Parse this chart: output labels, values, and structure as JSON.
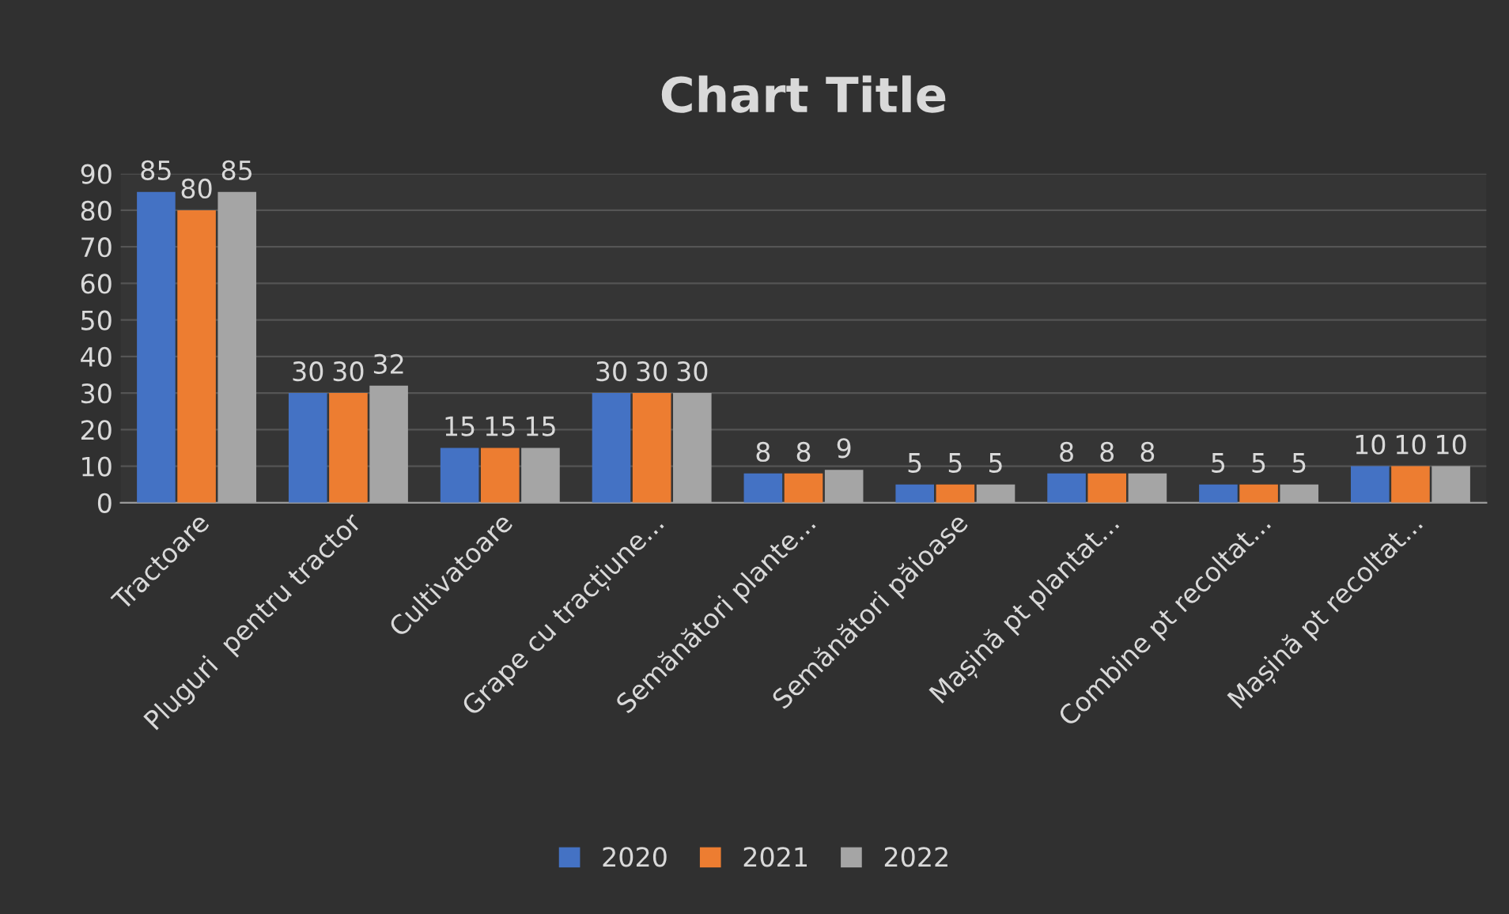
{
  "chart_data": {
    "type": "bar",
    "title": "Chart Title",
    "categories": [
      "Tractoare",
      "Pluguri  pentru tractor",
      "Cultivatoare",
      "Grape cu tracțiune...",
      "Semănători plante...",
      "Semănători păioase",
      "Mașină pt plantat...",
      "Combine pt recoltat...",
      "Mașină pt recoltat..."
    ],
    "series": [
      {
        "name": "2020",
        "color": "#4472c4",
        "values": [
          85,
          30,
          15,
          30,
          8,
          5,
          8,
          5,
          10
        ]
      },
      {
        "name": "2021",
        "color": "#ed7d31",
        "values": [
          80,
          30,
          15,
          30,
          8,
          5,
          8,
          5,
          10
        ]
      },
      {
        "name": "2022",
        "color": "#a5a5a5",
        "values": [
          85,
          32,
          15,
          30,
          9,
          5,
          8,
          5,
          10
        ]
      }
    ],
    "ylim": [
      0,
      90
    ],
    "yticks": [
      0,
      10,
      20,
      30,
      40,
      50,
      60,
      70,
      80,
      90
    ],
    "grid": "y",
    "legend": "bottom",
    "data_labels": true
  }
}
